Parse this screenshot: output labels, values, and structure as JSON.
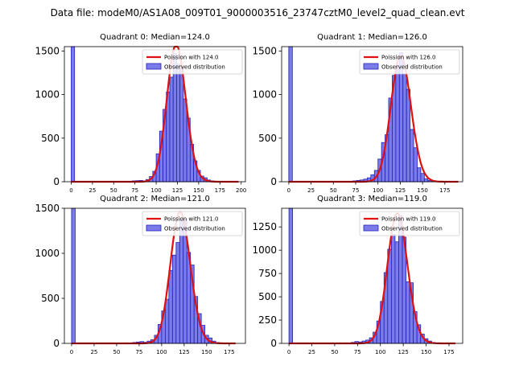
{
  "figure": {
    "suptitle": "Data file: modeM0/AS1A08_009T01_9000003516_23747cztM0_level2_quad_clean.evt"
  },
  "colors": {
    "hist_fill": "#7b7bea",
    "hist_edge": "#2020b8",
    "poisson_line": "#e01010",
    "axes": "#000000"
  },
  "chart_data": [
    {
      "type": "bar",
      "title": "Quadrant 0: Median=124.0",
      "median": 124.0,
      "legend": [
        "Poission with 124.0",
        "Observed distribution"
      ],
      "legend_position": "top-right",
      "xlim": [
        -8,
        205
      ],
      "ylim": [
        0,
        1550
      ],
      "xticks": [
        0,
        25,
        50,
        75,
        100,
        125,
        150,
        175,
        200
      ],
      "yticks": [
        0,
        500,
        1000,
        1500
      ],
      "bin_width": 4,
      "zero_bin": {
        "x": 0,
        "count": 1550
      },
      "bins": [
        [
          72,
          10
        ],
        [
          76,
          12
        ],
        [
          80,
          15
        ],
        [
          84,
          10
        ],
        [
          88,
          25
        ],
        [
          92,
          60
        ],
        [
          96,
          120
        ],
        [
          100,
          320
        ],
        [
          104,
          580
        ],
        [
          108,
          830
        ],
        [
          112,
          1030
        ],
        [
          116,
          1200
        ],
        [
          120,
          1470
        ],
        [
          124,
          1350
        ],
        [
          128,
          1330
        ],
        [
          132,
          950
        ],
        [
          136,
          730
        ],
        [
          140,
          430
        ],
        [
          144,
          240
        ],
        [
          148,
          130
        ],
        [
          152,
          65
        ],
        [
          156,
          45
        ],
        [
          160,
          20
        ],
        [
          164,
          10
        ],
        [
          168,
          5
        ]
      ],
      "poisson": {
        "mean": 124.0,
        "xmin": 0,
        "xmax": 197
      }
    },
    {
      "type": "bar",
      "title": "Quadrant 1: Median=126.0",
      "median": 126.0,
      "legend": [
        "Poission with 126.0",
        "Observed distribution"
      ],
      "legend_position": "top-right",
      "xlim": [
        -8,
        195
      ],
      "ylim": [
        0,
        1550
      ],
      "xticks": [
        0,
        25,
        50,
        75,
        100,
        125,
        150,
        175
      ],
      "yticks": [
        0,
        500,
        1000,
        1500
      ],
      "bin_width": 4,
      "zero_bin": {
        "x": 0,
        "count": 1550
      },
      "bins": [
        [
          72,
          10
        ],
        [
          76,
          15
        ],
        [
          80,
          20
        ],
        [
          84,
          30
        ],
        [
          88,
          45
        ],
        [
          92,
          80
        ],
        [
          96,
          130
        ],
        [
          100,
          260
        ],
        [
          104,
          450
        ],
        [
          108,
          540
        ],
        [
          112,
          960
        ],
        [
          116,
          1220
        ],
        [
          120,
          1320
        ],
        [
          124,
          1480
        ],
        [
          128,
          1240
        ],
        [
          132,
          1060
        ],
        [
          136,
          600
        ],
        [
          140,
          390
        ],
        [
          144,
          160
        ],
        [
          148,
          95
        ],
        [
          152,
          35
        ],
        [
          156,
          15
        ],
        [
          160,
          10
        ],
        [
          164,
          5
        ]
      ],
      "poisson": {
        "mean": 126.0,
        "xmin": 0,
        "xmax": 190
      }
    },
    {
      "type": "bar",
      "title": "Quadrant 2: Median=121.0",
      "median": 121.0,
      "legend": [
        "Poission with 121.0",
        "Observed distribution"
      ],
      "legend_position": "top-right",
      "xlim": [
        -8,
        193
      ],
      "ylim": [
        0,
        1500
      ],
      "xticks": [
        0,
        25,
        50,
        75,
        100,
        125,
        150,
        175
      ],
      "yticks": [
        0,
        500,
        1000,
        1500
      ],
      "bin_width": 4,
      "zero_bin": {
        "x": 0,
        "count": 1500
      },
      "bins": [
        [
          68,
          10
        ],
        [
          72,
          15
        ],
        [
          76,
          20
        ],
        [
          80,
          12
        ],
        [
          84,
          25
        ],
        [
          88,
          40
        ],
        [
          92,
          90
        ],
        [
          96,
          210
        ],
        [
          100,
          360
        ],
        [
          104,
          490
        ],
        [
          108,
          810
        ],
        [
          112,
          980
        ],
        [
          116,
          1120
        ],
        [
          120,
          1380
        ],
        [
          124,
          1380
        ],
        [
          128,
          1010
        ],
        [
          132,
          870
        ],
        [
          136,
          520
        ],
        [
          140,
          330
        ],
        [
          144,
          200
        ],
        [
          148,
          90
        ],
        [
          152,
          60
        ],
        [
          156,
          25
        ],
        [
          160,
          10
        ],
        [
          164,
          5
        ]
      ],
      "poisson": {
        "mean": 121.0,
        "xmin": 0,
        "xmax": 182
      }
    },
    {
      "type": "bar",
      "title": "Quadrant 3: Median=119.0",
      "median": 119.0,
      "legend": [
        "Poission with 119.0",
        "Observed distribution"
      ],
      "legend_position": "top-right",
      "xlim": [
        -8,
        190
      ],
      "ylim": [
        0,
        1450
      ],
      "xticks": [
        0,
        25,
        50,
        75,
        100,
        125,
        150,
        175
      ],
      "yticks": [
        0,
        250,
        500,
        750,
        1000,
        1250
      ],
      "bin_width": 4,
      "zero_bin": {
        "x": 0,
        "count": 1450
      },
      "bins": [
        [
          68,
          10
        ],
        [
          72,
          20
        ],
        [
          76,
          15
        ],
        [
          80,
          25
        ],
        [
          84,
          35
        ],
        [
          88,
          60
        ],
        [
          92,
          120
        ],
        [
          96,
          240
        ],
        [
          100,
          450
        ],
        [
          104,
          760
        ],
        [
          108,
          1010
        ],
        [
          112,
          1170
        ],
        [
          116,
          1090
        ],
        [
          120,
          1370
        ],
        [
          124,
          1140
        ],
        [
          128,
          660
        ],
        [
          132,
          650
        ],
        [
          136,
          340
        ],
        [
          140,
          200
        ],
        [
          144,
          100
        ],
        [
          148,
          50
        ],
        [
          152,
          25
        ],
        [
          156,
          10
        ],
        [
          160,
          5
        ]
      ],
      "poisson": {
        "mean": 119.0,
        "xmin": 0,
        "xmax": 182
      }
    }
  ]
}
